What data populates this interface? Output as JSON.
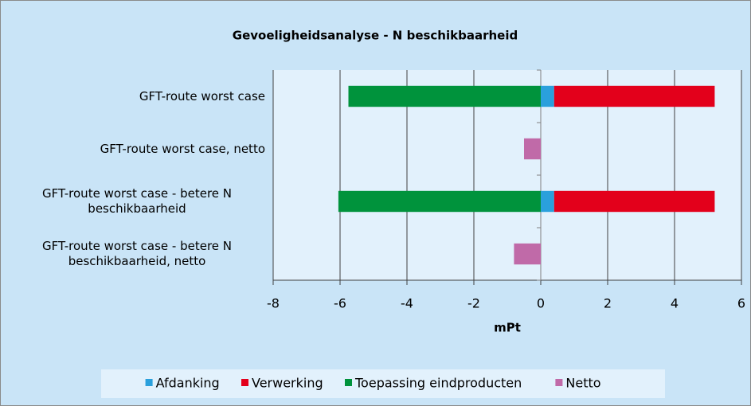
{
  "chart_data": {
    "type": "bar",
    "orientation": "horizontal",
    "stacked": true,
    "title": "Gevoeligheidsanalyse - N beschikbaarheid",
    "xlabel": "mPt",
    "categories": [
      "GFT-route worst case",
      "GFT-route worst case, netto",
      "GFT-route worst case - betere N beschikbaarheid",
      "GFT-route worst case - betere N beschikbaarheid, netto"
    ],
    "series": [
      {
        "name": "Afdanking",
        "color": "#2aa0dc",
        "values": [
          0.4,
          null,
          0.4,
          null
        ]
      },
      {
        "name": "Verwerking",
        "color": "#e3001b",
        "values": [
          4.8,
          null,
          4.8,
          null
        ]
      },
      {
        "name": "Toepassing eindproducten",
        "color": "#00933c",
        "values": [
          -5.75,
          null,
          -6.05,
          null
        ]
      },
      {
        "name": "Netto",
        "color": "#c06aa8",
        "values": [
          null,
          -0.5,
          null,
          -0.8
        ]
      }
    ],
    "xlim": [
      -8,
      6
    ],
    "xticks": [
      -8,
      -6,
      -4,
      -2,
      0,
      2,
      4,
      6
    ],
    "grid": true,
    "legend": "bottom"
  }
}
